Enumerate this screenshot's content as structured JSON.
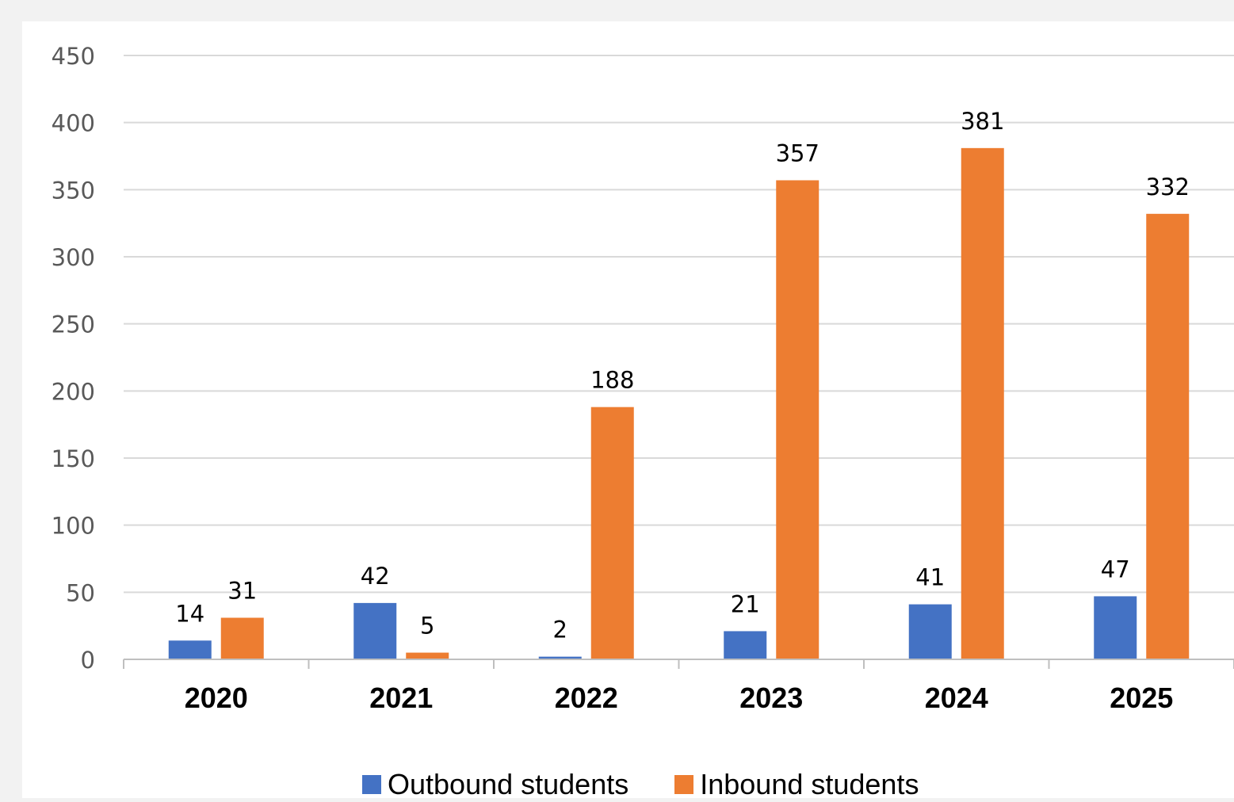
{
  "chart_data": {
    "type": "bar",
    "categories": [
      "2020",
      "2021",
      "2022",
      "2023",
      "2024",
      "2025"
    ],
    "series": [
      {
        "name": "Outbound students",
        "color": "#4472c4",
        "values": [
          14,
          42,
          2,
          21,
          41,
          47
        ]
      },
      {
        "name": "Inbound students",
        "color": "#ed7d31",
        "values": [
          31,
          5,
          188,
          357,
          381,
          332
        ]
      }
    ],
    "ylim": [
      0,
      450
    ],
    "yticks": [
      0,
      50,
      100,
      150,
      200,
      250,
      300,
      350,
      400,
      450
    ],
    "grid": true,
    "legend_position": "bottom",
    "data_labels": true
  }
}
